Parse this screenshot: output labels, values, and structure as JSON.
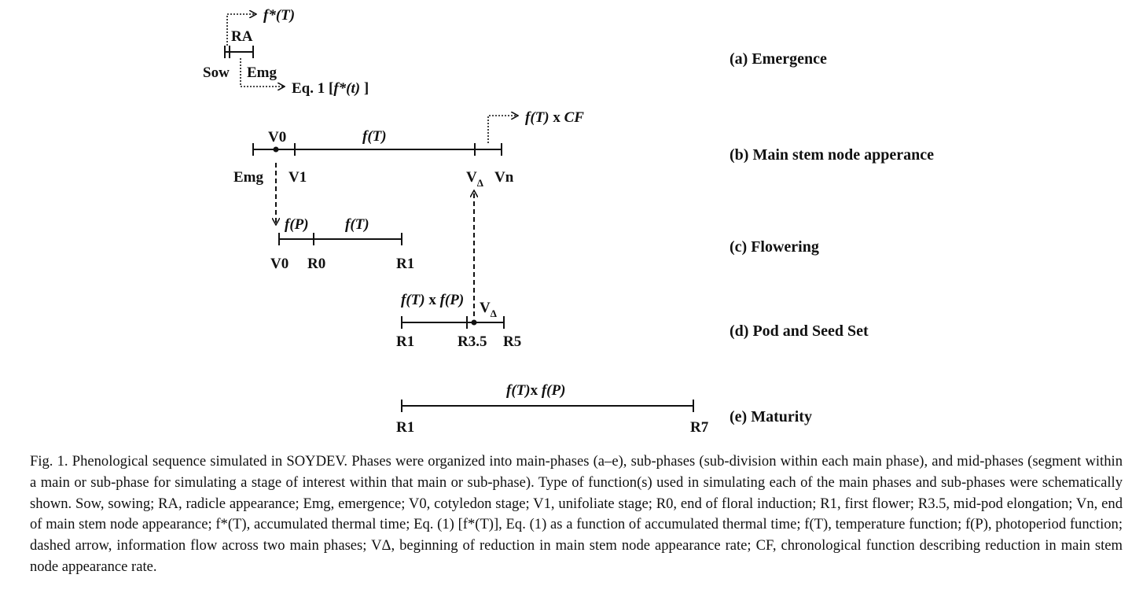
{
  "phases": {
    "a": "(a) Emergence",
    "b": "(b) Main stem node apperance",
    "c": "(c) Flowering",
    "d": "(d) Pod and Seed Set",
    "e": "(e) Maturity"
  },
  "row_a": {
    "top_arrow_label": "f*(T)",
    "span_label": "RA",
    "left_label": "Sow",
    "right_label": "Emg",
    "bottom_arrow_label_pre": "Eq. 1  [",
    "bottom_arrow_label_fn": "f*(t)",
    "bottom_arrow_label_post": " ]"
  },
  "row_b": {
    "arrow_label_fn": "f(T)",
    "arrow_label_post": "  x ",
    "arrow_label_cf": "CF",
    "dot_label": "V0",
    "span_label": "f(T)",
    "ticks": [
      "Emg",
      "V1",
      "V",
      "Δ",
      "Vn"
    ]
  },
  "row_c": {
    "label_1": "f(P)",
    "label_2": "f(T)",
    "ticks": [
      "V0",
      "R0",
      "R1"
    ]
  },
  "row_d": {
    "fn_label_1": "f(T)",
    "fn_label_mid": " x ",
    "fn_label_2": "f(P)",
    "marker_label": "V",
    "marker_sub": "Δ",
    "ticks": [
      "R1",
      "R3.5",
      "R5"
    ]
  },
  "row_e": {
    "fn_label_1": "f(T)",
    "fn_label_mid": "x ",
    "fn_label_2": "f(P)",
    "ticks": [
      "R1",
      "R7"
    ]
  },
  "caption": "Fig. 1.  Phenological sequence simulated in SOYDEV. Phases were organized into main-phases (a–e), sub-phases (sub-division within each main phase), and mid-phases (segment within a main or sub-phase for simulating a stage of interest within that main or sub-phase). Type of function(s) used in simulating each of the main phases and sub-phases were schematically shown. Sow, sowing; RA, radicle appearance; Emg, emergence; V0, cotyledon stage; V1, unifoliate stage; R0, end of floral induction; R1, first flower; R3.5, mid-pod elongation; Vn, end of main stem node appearance; f*(T), accumulated thermal time; Eq. (1) [f*(T)], Eq. (1) as a function of accumulated thermal time; f(T), temperature function; f(P), photoperiod function; dashed arrow, information flow across two main phases; VΔ, beginning of reduction in main stem node appearance rate; CF, chronological function describing reduction in main stem node appearance rate."
}
